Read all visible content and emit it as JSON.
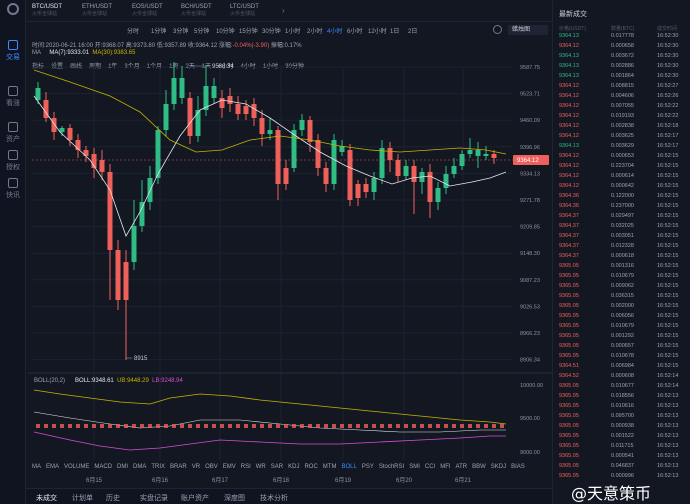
{
  "colors": {
    "up": "#2ebd85",
    "down": "#f0605a",
    "accent": "#3a8bff",
    "ma7": "#e4e8f0",
    "ma30": "#c8b400",
    "boll_ub": "#c8b400",
    "boll_lb": "#d64fd6"
  },
  "sidebar": {
    "items": [
      {
        "label": "交易",
        "icon": "chart-icon"
      },
      {
        "label": "看涨",
        "icon": "trend-icon"
      },
      {
        "label": "资产",
        "icon": "wallet-icon"
      },
      {
        "label": "授权",
        "icon": "key-icon"
      },
      {
        "label": "快讯",
        "icon": "news-icon"
      }
    ]
  },
  "pairs": [
    {
      "name": "BTC/USDT",
      "sub": "火币全球站"
    },
    {
      "name": "ETH/USDT",
      "sub": "火币全球站"
    },
    {
      "name": "EOS/USDT",
      "sub": "火币全球站"
    },
    {
      "name": "BCH/USDT",
      "sub": "火币全球站"
    },
    {
      "name": "LTC/USDT",
      "sub": "火币全球站"
    }
  ],
  "intervals": [
    "分时",
    "1分钟",
    "3分钟",
    "5分钟",
    "10分钟",
    "15分钟",
    "30分钟",
    "1小时",
    "2小时",
    "4小时",
    "6小时",
    "12小时",
    "1日",
    "2日"
  ],
  "active_interval": "4小时",
  "chart_type": "蜡烛图",
  "info_line": {
    "time": "时间:2020-06-21 16:00",
    "open": "开:9368.07",
    "high": "高:9373.80",
    "low": "低:9357.89",
    "close": "收:9364.12",
    "change_label": "涨幅:",
    "change": "-0.04%(-3.90)",
    "amplitude": "振幅:0.17%"
  },
  "ma": {
    "label": "MA",
    "ma7": "MA(7):9333.01",
    "ma30": "MA(30):9383.65"
  },
  "tools": [
    "指标",
    "设置",
    "画线",
    "周期",
    "1年",
    "3个月",
    "1个月",
    "1周",
    "2天",
    "1天",
    "6小时",
    "4小时",
    "1小时",
    "30分钟"
  ],
  "price_axis": [
    "9587.75",
    "9523.71",
    "9460.09",
    "9396.96",
    "9334.13",
    "9271.78",
    "9209.85",
    "9148.30",
    "9087.23",
    "9026.53",
    "8966.23",
    "8906.34"
  ],
  "current_price": "9364.12",
  "high_marker": "9588.34",
  "low_marker": "8915",
  "date_axis": [
    "6月15",
    "6月16",
    "6月17",
    "6月18",
    "6月19",
    "6月20",
    "6月21"
  ],
  "boll": {
    "label": "BOLL(20,2)",
    "mid": "BOLL:9348.61",
    "ub": "UB:9448.29",
    "lb": "LB:9248.94",
    "axis": [
      "10000.00",
      "9500.00",
      "9000.00"
    ]
  },
  "indicators": [
    "MA",
    "EMA",
    "VOLUME",
    "MACD",
    "DMI",
    "DMA",
    "TRIX",
    "BRAR",
    "VR",
    "OBV",
    "EMV",
    "RSI",
    "WR",
    "SAR",
    "KDJ",
    "ROC",
    "MTM",
    "BOLL",
    "PSY",
    "StochRSI",
    "SMI",
    "CCI",
    "MFI",
    "ATR",
    "BBW",
    "SKDJ",
    "BIAS"
  ],
  "active_indicator": "BOLL",
  "bottom_tabs": [
    "未成交",
    "计划单",
    "历史",
    "实盘记录",
    "账户资产",
    "深度图",
    "技术分析"
  ],
  "trades": {
    "title": "最新成交",
    "head": {
      "price": "价格(USDT)",
      "amount": "数量(BTC)",
      "time": "成交时间"
    },
    "rows": [
      {
        "p": "9364.13",
        "a": "0.017778",
        "t": "16:52:30",
        "s": "up"
      },
      {
        "p": "9364.12",
        "a": "0.000658",
        "t": "16:52:30",
        "s": "dn"
      },
      {
        "p": "9364.13",
        "a": "0.003672",
        "t": "16:52:30",
        "s": "up"
      },
      {
        "p": "9364.13",
        "a": "0.002886",
        "t": "16:52:30",
        "s": "up"
      },
      {
        "p": "9364.13",
        "a": "0.001864",
        "t": "16:52:30",
        "s": "up"
      },
      {
        "p": "9364.12",
        "a": "0.008815",
        "t": "16:52:27",
        "s": "dn"
      },
      {
        "p": "9364.12",
        "a": "0.004606",
        "t": "16:52:26",
        "s": "dn"
      },
      {
        "p": "9364.12",
        "a": "0.007055",
        "t": "16:52:22",
        "s": "dn"
      },
      {
        "p": "9364.12",
        "a": "0.019193",
        "t": "16:52:22",
        "s": "dn"
      },
      {
        "p": "9364.12",
        "a": "0.002838",
        "t": "16:52:18",
        "s": "dn"
      },
      {
        "p": "9364.12",
        "a": "0.003625",
        "t": "16:52:17",
        "s": "dn"
      },
      {
        "p": "9364.13",
        "a": "0.003629",
        "t": "16:52:17",
        "s": "up"
      },
      {
        "p": "9364.12",
        "a": "0.000653",
        "t": "16:52:15",
        "s": "dn"
      },
      {
        "p": "9364.12",
        "a": "0.223704",
        "t": "16:52:15",
        "s": "dn"
      },
      {
        "p": "9364.12",
        "a": "0.000614",
        "t": "16:52:15",
        "s": "dn"
      },
      {
        "p": "9364.12",
        "a": "0.000642",
        "t": "16:52:15",
        "s": "dn"
      },
      {
        "p": "9364.36",
        "a": "0.122000",
        "t": "16:52:15",
        "s": "dn"
      },
      {
        "p": "9364.36",
        "a": "0.237000",
        "t": "16:52:15",
        "s": "dn"
      },
      {
        "p": "9364.37",
        "a": "0.029497",
        "t": "16:52:15",
        "s": "dn"
      },
      {
        "p": "9364.37",
        "a": "0.032025",
        "t": "16:52:15",
        "s": "dn"
      },
      {
        "p": "9364.37",
        "a": "0.003051",
        "t": "16:52:15",
        "s": "dn"
      },
      {
        "p": "9364.37",
        "a": "0.012328",
        "t": "16:52:15",
        "s": "dn"
      },
      {
        "p": "9364.37",
        "a": "0.000618",
        "t": "16:52:15",
        "s": "dn"
      },
      {
        "p": "9365.05",
        "a": "0.001316",
        "t": "16:52:15",
        "s": "dn"
      },
      {
        "p": "9365.05",
        "a": "0.010679",
        "t": "16:52:15",
        "s": "dn"
      },
      {
        "p": "9365.05",
        "a": "0.009062",
        "t": "16:52:15",
        "s": "dn"
      },
      {
        "p": "9365.05",
        "a": "0.036315",
        "t": "16:52:15",
        "s": "dn"
      },
      {
        "p": "9365.05",
        "a": "0.002000",
        "t": "16:52:15",
        "s": "dn"
      },
      {
        "p": "9365.05",
        "a": "0.006056",
        "t": "16:52:15",
        "s": "dn"
      },
      {
        "p": "9365.05",
        "a": "0.010679",
        "t": "16:52:15",
        "s": "dn"
      },
      {
        "p": "9365.05",
        "a": "0.001292",
        "t": "16:52:15",
        "s": "dn"
      },
      {
        "p": "9365.05",
        "a": "0.000657",
        "t": "16:52:15",
        "s": "dn"
      },
      {
        "p": "9365.05",
        "a": "0.010678",
        "t": "16:52:15",
        "s": "dn"
      },
      {
        "p": "9364.51",
        "a": "0.006984",
        "t": "16:52:15",
        "s": "dn"
      },
      {
        "p": "9364.52",
        "a": "0.000608",
        "t": "16:52:14",
        "s": "dn"
      },
      {
        "p": "9365.05",
        "a": "0.010677",
        "t": "16:52:14",
        "s": "dn"
      },
      {
        "p": "9365.05",
        "a": "0.018556",
        "t": "16:52:13",
        "s": "dn"
      },
      {
        "p": "9365.05",
        "a": "0.010616",
        "t": "16:52:13",
        "s": "dn"
      },
      {
        "p": "9365.05",
        "a": "0.095700",
        "t": "16:52:13",
        "s": "dn"
      },
      {
        "p": "9365.05",
        "a": "0.000938",
        "t": "16:52:13",
        "s": "dn"
      },
      {
        "p": "9365.05",
        "a": "0.001522",
        "t": "16:52:13",
        "s": "dn"
      },
      {
        "p": "9365.05",
        "a": "0.011715",
        "t": "16:52:13",
        "s": "dn"
      },
      {
        "p": "9365.05",
        "a": "0.000541",
        "t": "16:52:13",
        "s": "dn"
      },
      {
        "p": "9365.05",
        "a": "0.046837",
        "t": "16:52:13",
        "s": "dn"
      },
      {
        "p": "9365.05",
        "a": "0.000996",
        "t": "16:52:13",
        "s": "dn"
      }
    ]
  },
  "watermark": "@天意策币"
}
